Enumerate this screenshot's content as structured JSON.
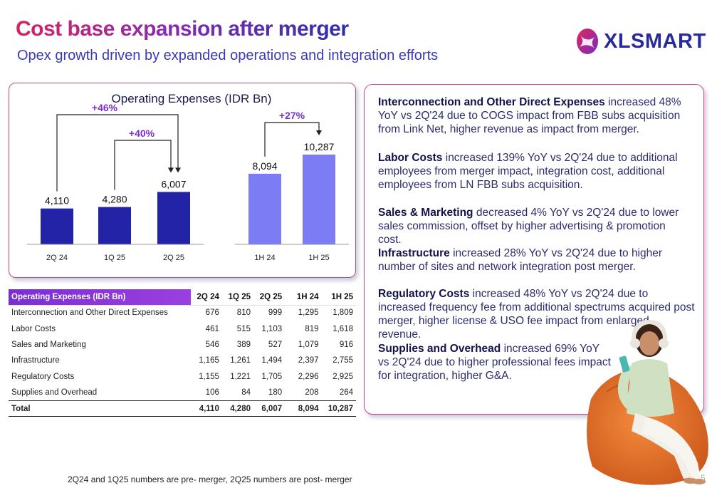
{
  "header": {
    "title": "Cost base expansion after merger",
    "subtitle": "Opex growth driven by expanded operations and integration efforts"
  },
  "brand": {
    "name": "XLSMART",
    "colors": {
      "primary": "#2a2a9a",
      "accent": "#d6215f",
      "bar_dark": "#2323a8",
      "bar_light": "#7c7cf5",
      "growth_label": "#7b2fd0"
    }
  },
  "chart_data": {
    "type": "bar",
    "title": "Operating Expenses (IDR Bn)",
    "groups": [
      {
        "categories": [
          "2Q 24",
          "1Q 25",
          "2Q 25"
        ],
        "values": [
          4110,
          4280,
          6007
        ],
        "value_labels": [
          "4,110",
          "4,280",
          "6,007"
        ],
        "color": "#2323a8"
      },
      {
        "categories": [
          "1H 24",
          "1H 25"
        ],
        "values": [
          8094,
          10287
        ],
        "value_labels": [
          "8,094",
          "10,287"
        ],
        "color": "#7c7cf5"
      }
    ],
    "annotations": [
      {
        "text": "+46%",
        "from": "2Q 24",
        "to": "2Q 25"
      },
      {
        "text": "+40%",
        "from": "1Q 25",
        "to": "2Q 25"
      },
      {
        "text": "+27%",
        "from": "1H 24",
        "to": "1H 25"
      }
    ],
    "grid": false,
    "legend": "none"
  },
  "table": {
    "headers": [
      "Operating Expenses (IDR Bn)",
      "2Q 24",
      "1Q 25",
      "2Q 25",
      "1H 24",
      "1H 25"
    ],
    "rows": [
      [
        "Interconnection and Other Direct Expenses",
        "676",
        "810",
        "999",
        "1,295",
        "1,809"
      ],
      [
        "Labor Costs",
        "461",
        "515",
        "1,103",
        "819",
        "1,618"
      ],
      [
        "Sales and Marketing",
        "546",
        "389",
        "527",
        "1,079",
        "916"
      ],
      [
        "Infrastructure",
        "1,165",
        "1,261",
        "1,494",
        "2,397",
        "2,755"
      ],
      [
        "Regulatory Costs",
        "1,155",
        "1,221",
        "1,705",
        "2,296",
        "2,925"
      ],
      [
        "Supplies and Overhead",
        "106",
        "84",
        "180",
        "208",
        "264"
      ]
    ],
    "total": [
      "Total",
      "4,110",
      "4,280",
      "6,007",
      "8,094",
      "10,287"
    ]
  },
  "commentary": [
    {
      "heading": "Interconnection and Other Direct Expenses",
      "body": " increased 48% YoY vs 2Q'24 due to COGS impact from FBB subs acquisition from Link Net, higher revenue as impact from merger."
    },
    {
      "heading": "Labor Costs",
      "body": " increased 139% YoY vs 2Q'24 due to additional employees from merger impact, integration cost, additional employees from LN FBB subs acquisition."
    },
    {
      "heading": "Sales & Marketing",
      "body": " decreased 4% YoY vs 2Q'24 due to lower sales commission, offset by higher advertising & promotion cost."
    },
    {
      "heading": "Infrastructure",
      "body": " increased 28% YoY vs 2Q'24 due to higher number of sites and network integration post merger."
    },
    {
      "heading": "Regulatory Costs",
      "body": " increased 48% YoY vs 2Q'24 due to increased frequency fee from additional spectrums acquired post merger, higher license & USO fee impact from enlarged revenue."
    },
    {
      "heading": "Supplies and Overhead",
      "body": " increased 69% YoY vs 2Q'24 due to higher professional fees impact for integration, higher G&A."
    }
  ],
  "footnote": "2Q24 and 1Q25 numbers are pre- merger, 2Q25 numbers are post- merger",
  "page_number": "5"
}
